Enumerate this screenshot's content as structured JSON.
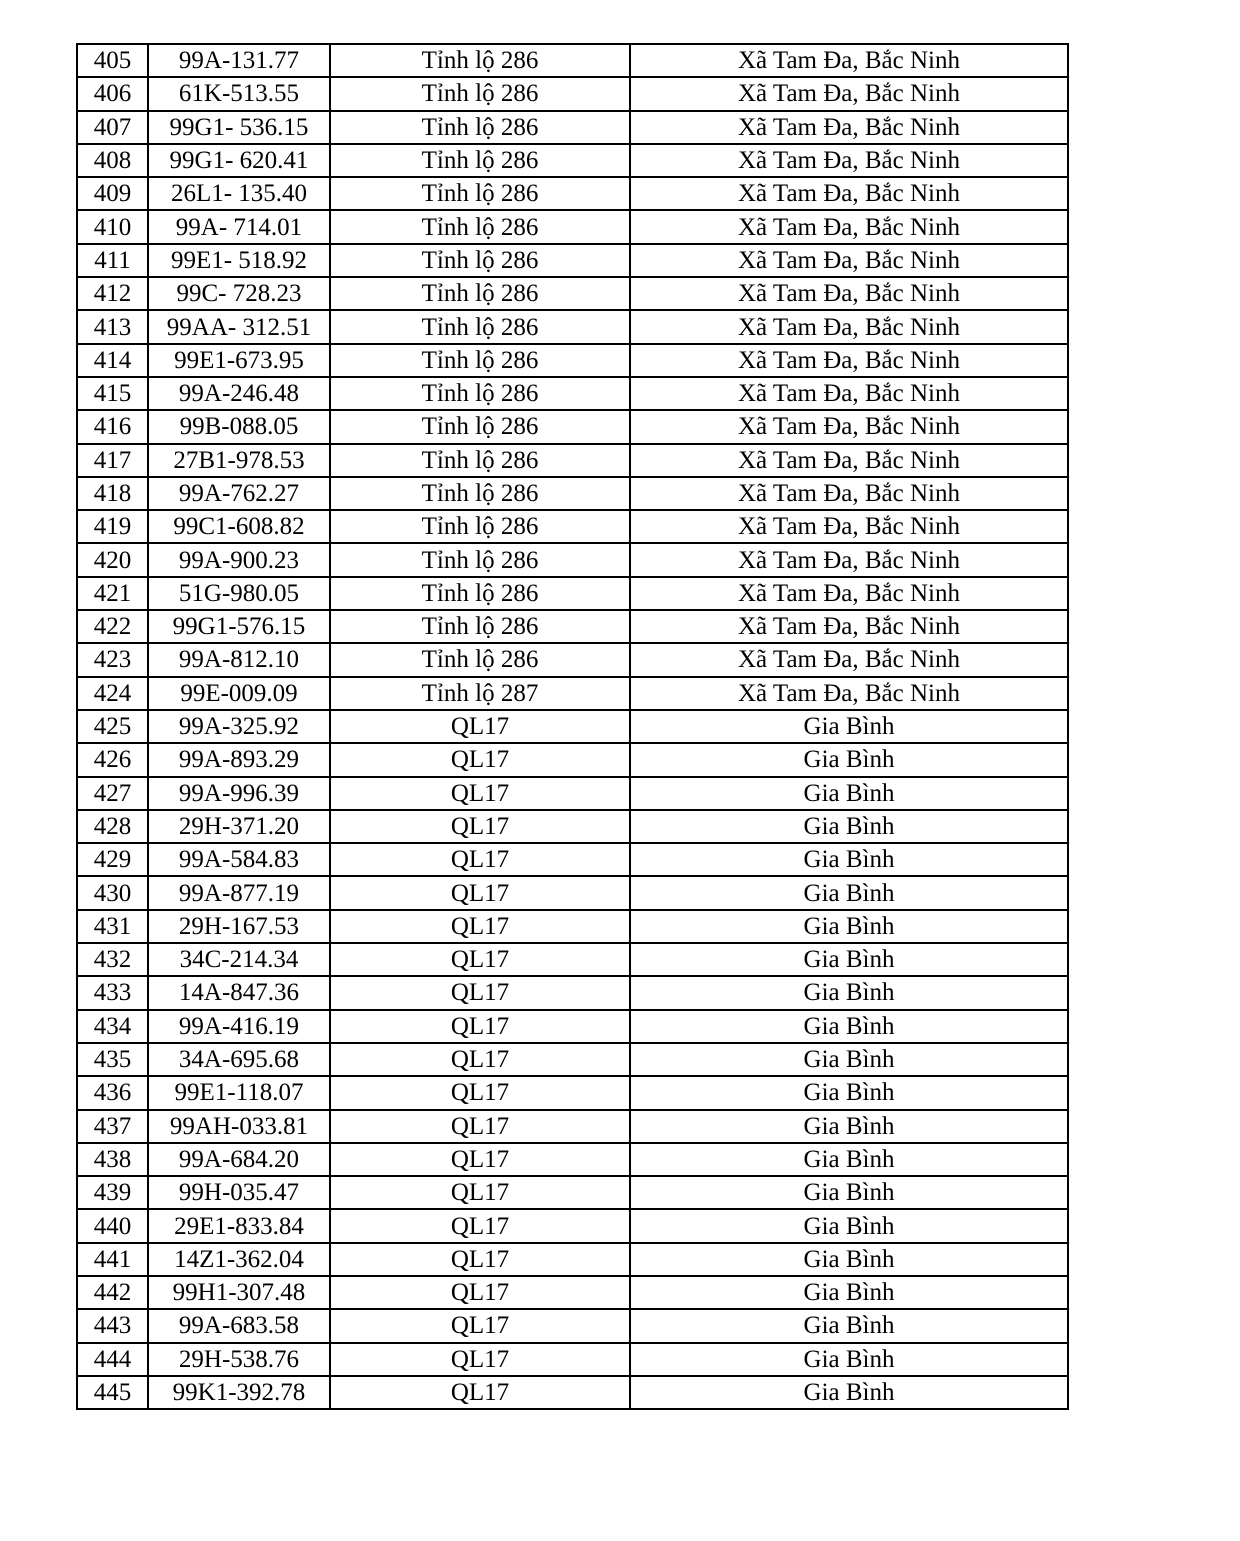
{
  "table": {
    "rows": [
      {
        "no": "405",
        "plate": "99A-131.77",
        "road": "Tỉnh lộ 286",
        "location": "Xã Tam Đa, Bắc Ninh"
      },
      {
        "no": "406",
        "plate": "61K-513.55",
        "road": "Tỉnh lộ 286",
        "location": "Xã Tam Đa, Bắc Ninh"
      },
      {
        "no": "407",
        "plate": "99G1- 536.15",
        "road": "Tỉnh lộ 286",
        "location": "Xã Tam Đa, Bắc Ninh"
      },
      {
        "no": "408",
        "plate": "99G1- 620.41",
        "road": "Tỉnh lộ 286",
        "location": "Xã Tam Đa, Bắc Ninh"
      },
      {
        "no": "409",
        "plate": "26L1- 135.40",
        "road": "Tỉnh lộ 286",
        "location": "Xã Tam Đa, Bắc Ninh"
      },
      {
        "no": "410",
        "plate": "99A- 714.01",
        "road": "Tỉnh lộ 286",
        "location": "Xã Tam Đa, Bắc Ninh"
      },
      {
        "no": "411",
        "plate": "99E1- 518.92",
        "road": "Tỉnh lộ 286",
        "location": "Xã Tam Đa, Bắc Ninh"
      },
      {
        "no": "412",
        "plate": "99C- 728.23",
        "road": "Tỉnh lộ 286",
        "location": "Xã Tam Đa, Bắc Ninh"
      },
      {
        "no": "413",
        "plate": "99AA- 312.51",
        "road": "Tỉnh lộ 286",
        "location": "Xã Tam Đa, Bắc Ninh"
      },
      {
        "no": "414",
        "plate": "99E1-673.95",
        "road": "Tỉnh lộ 286",
        "location": "Xã Tam Đa, Bắc Ninh"
      },
      {
        "no": "415",
        "plate": "99A-246.48",
        "road": "Tỉnh lộ 286",
        "location": "Xã Tam Đa, Bắc Ninh"
      },
      {
        "no": "416",
        "plate": "99B-088.05",
        "road": "Tỉnh lộ 286",
        "location": "Xã Tam Đa, Bắc Ninh"
      },
      {
        "no": "417",
        "plate": "27B1-978.53",
        "road": "Tỉnh lộ 286",
        "location": "Xã Tam Đa, Bắc Ninh"
      },
      {
        "no": "418",
        "plate": "99A-762.27",
        "road": "Tỉnh lộ 286",
        "location": "Xã Tam Đa, Bắc Ninh"
      },
      {
        "no": "419",
        "plate": "99C1-608.82",
        "road": "Tỉnh lộ 286",
        "location": "Xã Tam Đa, Bắc Ninh"
      },
      {
        "no": "420",
        "plate": "99A-900.23",
        "road": "Tỉnh lộ 286",
        "location": "Xã Tam Đa, Bắc Ninh"
      },
      {
        "no": "421",
        "plate": "51G-980.05",
        "road": "Tỉnh lộ 286",
        "location": "Xã Tam Đa, Bắc Ninh"
      },
      {
        "no": "422",
        "plate": "99G1-576.15",
        "road": "Tỉnh lộ 286",
        "location": "Xã Tam Đa, Bắc Ninh"
      },
      {
        "no": "423",
        "plate": "99A-812.10",
        "road": "Tỉnh lộ 286",
        "location": "Xã Tam Đa, Bắc Ninh"
      },
      {
        "no": "424",
        "plate": "99E-009.09",
        "road": "Tỉnh lộ 287",
        "location": "Xã Tam Đa, Bắc Ninh"
      },
      {
        "no": "425",
        "plate": "99A-325.92",
        "road": "QL17",
        "location": "Gia Bình"
      },
      {
        "no": "426",
        "plate": "99A-893.29",
        "road": "QL17",
        "location": "Gia Bình"
      },
      {
        "no": "427",
        "plate": "99A-996.39",
        "road": "QL17",
        "location": "Gia Bình"
      },
      {
        "no": "428",
        "plate": "29H-371.20",
        "road": "QL17",
        "location": "Gia Bình"
      },
      {
        "no": "429",
        "plate": "99A-584.83",
        "road": "QL17",
        "location": "Gia Bình"
      },
      {
        "no": "430",
        "plate": "99A-877.19",
        "road": "QL17",
        "location": "Gia Bình"
      },
      {
        "no": "431",
        "plate": "29H-167.53",
        "road": "QL17",
        "location": "Gia Bình"
      },
      {
        "no": "432",
        "plate": "34C-214.34",
        "road": "QL17",
        "location": "Gia Bình"
      },
      {
        "no": "433",
        "plate": "14A-847.36",
        "road": "QL17",
        "location": "Gia Bình"
      },
      {
        "no": "434",
        "plate": "99A-416.19",
        "road": "QL17",
        "location": "Gia Bình"
      },
      {
        "no": "435",
        "plate": "34A-695.68",
        "road": "QL17",
        "location": "Gia Bình"
      },
      {
        "no": "436",
        "plate": "99E1-118.07",
        "road": "QL17",
        "location": "Gia Bình"
      },
      {
        "no": "437",
        "plate": "99AH-033.81",
        "road": "QL17",
        "location": "Gia Bình"
      },
      {
        "no": "438",
        "plate": "99A-684.20",
        "road": "QL17",
        "location": "Gia Bình"
      },
      {
        "no": "439",
        "plate": "99H-035.47",
        "road": "QL17",
        "location": "Gia Bình"
      },
      {
        "no": "440",
        "plate": "29E1-833.84",
        "road": "QL17",
        "location": "Gia Bình"
      },
      {
        "no": "441",
        "plate": "14Z1-362.04",
        "road": "QL17",
        "location": "Gia Bình"
      },
      {
        "no": "442",
        "plate": "99H1-307.48",
        "road": "QL17",
        "location": "Gia Bình"
      },
      {
        "no": "443",
        "plate": "99A-683.58",
        "road": "QL17",
        "location": "Gia Bình"
      },
      {
        "no": "444",
        "plate": "29H-538.76",
        "road": "QL17",
        "location": "Gia Bình"
      },
      {
        "no": "445",
        "plate": "99K1-392.78",
        "road": "QL17",
        "location": "Gia Bình"
      }
    ]
  }
}
